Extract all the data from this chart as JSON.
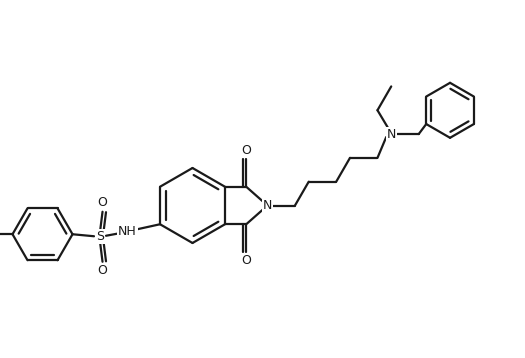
{
  "background_color": "#ffffff",
  "line_color": "#1a1a1a",
  "line_width": 1.6,
  "fig_width": 5.25,
  "fig_height": 3.58,
  "dpi": 100,
  "label_fontsize": 9.0,
  "o_label": "O",
  "n_label": "N",
  "nh_label": "NH",
  "s_label": "S",
  "h_label": "H"
}
